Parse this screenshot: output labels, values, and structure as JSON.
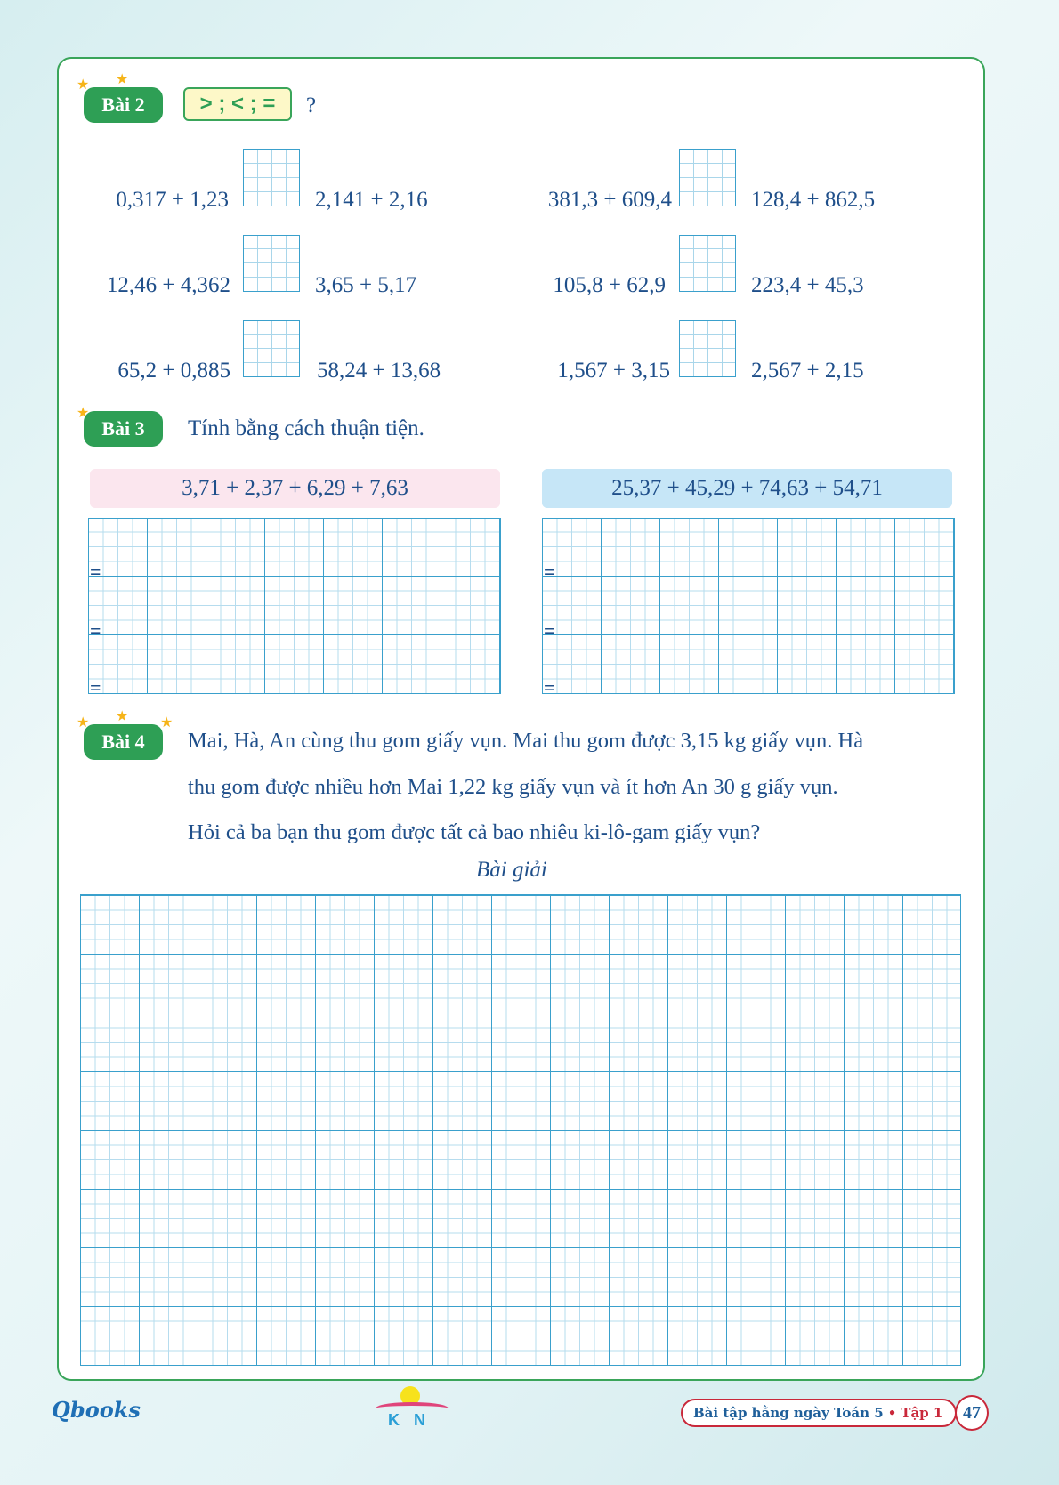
{
  "bai2": {
    "badge": "Bài 2",
    "symbols": "> ; < ; =",
    "question": "?",
    "rows": [
      {
        "left_a": "0,317 + 1,23",
        "left_b": "2,141 + 2,16",
        "right_a": "381,3 + 609,4",
        "right_b": "128,4 + 862,5"
      },
      {
        "left_a": "12,46 + 4,362",
        "left_b": "3,65 + 5,17",
        "right_a": "105,8 + 62,9",
        "right_b": "223,4 + 45,3"
      },
      {
        "left_a": "65,2 + 0,885",
        "left_b": "58,24 + 13,68",
        "right_a": "1,567 + 3,15",
        "right_b": "2,567 + 2,15"
      }
    ]
  },
  "bai3": {
    "badge": "Bài 3",
    "instruction": "Tính bằng cách thuận tiện.",
    "expr_left": "3,71 + 2,37 + 6,29 + 7,63",
    "expr_right": "25,37 + 45,29 + 74,63 + 54,71",
    "equals": "="
  },
  "bai4": {
    "badge": "Bài 4",
    "lines": [
      "Mai, Hà, An cùng thu gom giấy vụn. Mai thu gom được 3,15 kg giấy vụn. Hà",
      "thu gom được nhiều hơn Mai 1,22 kg giấy vụn và ít hơn An 30 g giấy vụn.",
      "Hỏi cả ba bạn thu gom được tất cả bao nhiêu ki-lô-gam giấy vụn?"
    ],
    "solution_label": "Bài giải"
  },
  "footer": {
    "logo_left": "Qbooks",
    "logo_center": "KN",
    "book_title": "Bài tập hằng ngày Toán 5",
    "bullet": "•",
    "volume": "Tập 1",
    "page": "47"
  },
  "colors": {
    "accent_green": "#2e9f55",
    "grid_blue": "#3aa0cc",
    "text_blue": "#1f4f8a",
    "pink": "#fbe6ee",
    "light_blue": "#c6e6f7",
    "footer_red": "#c9283a"
  }
}
